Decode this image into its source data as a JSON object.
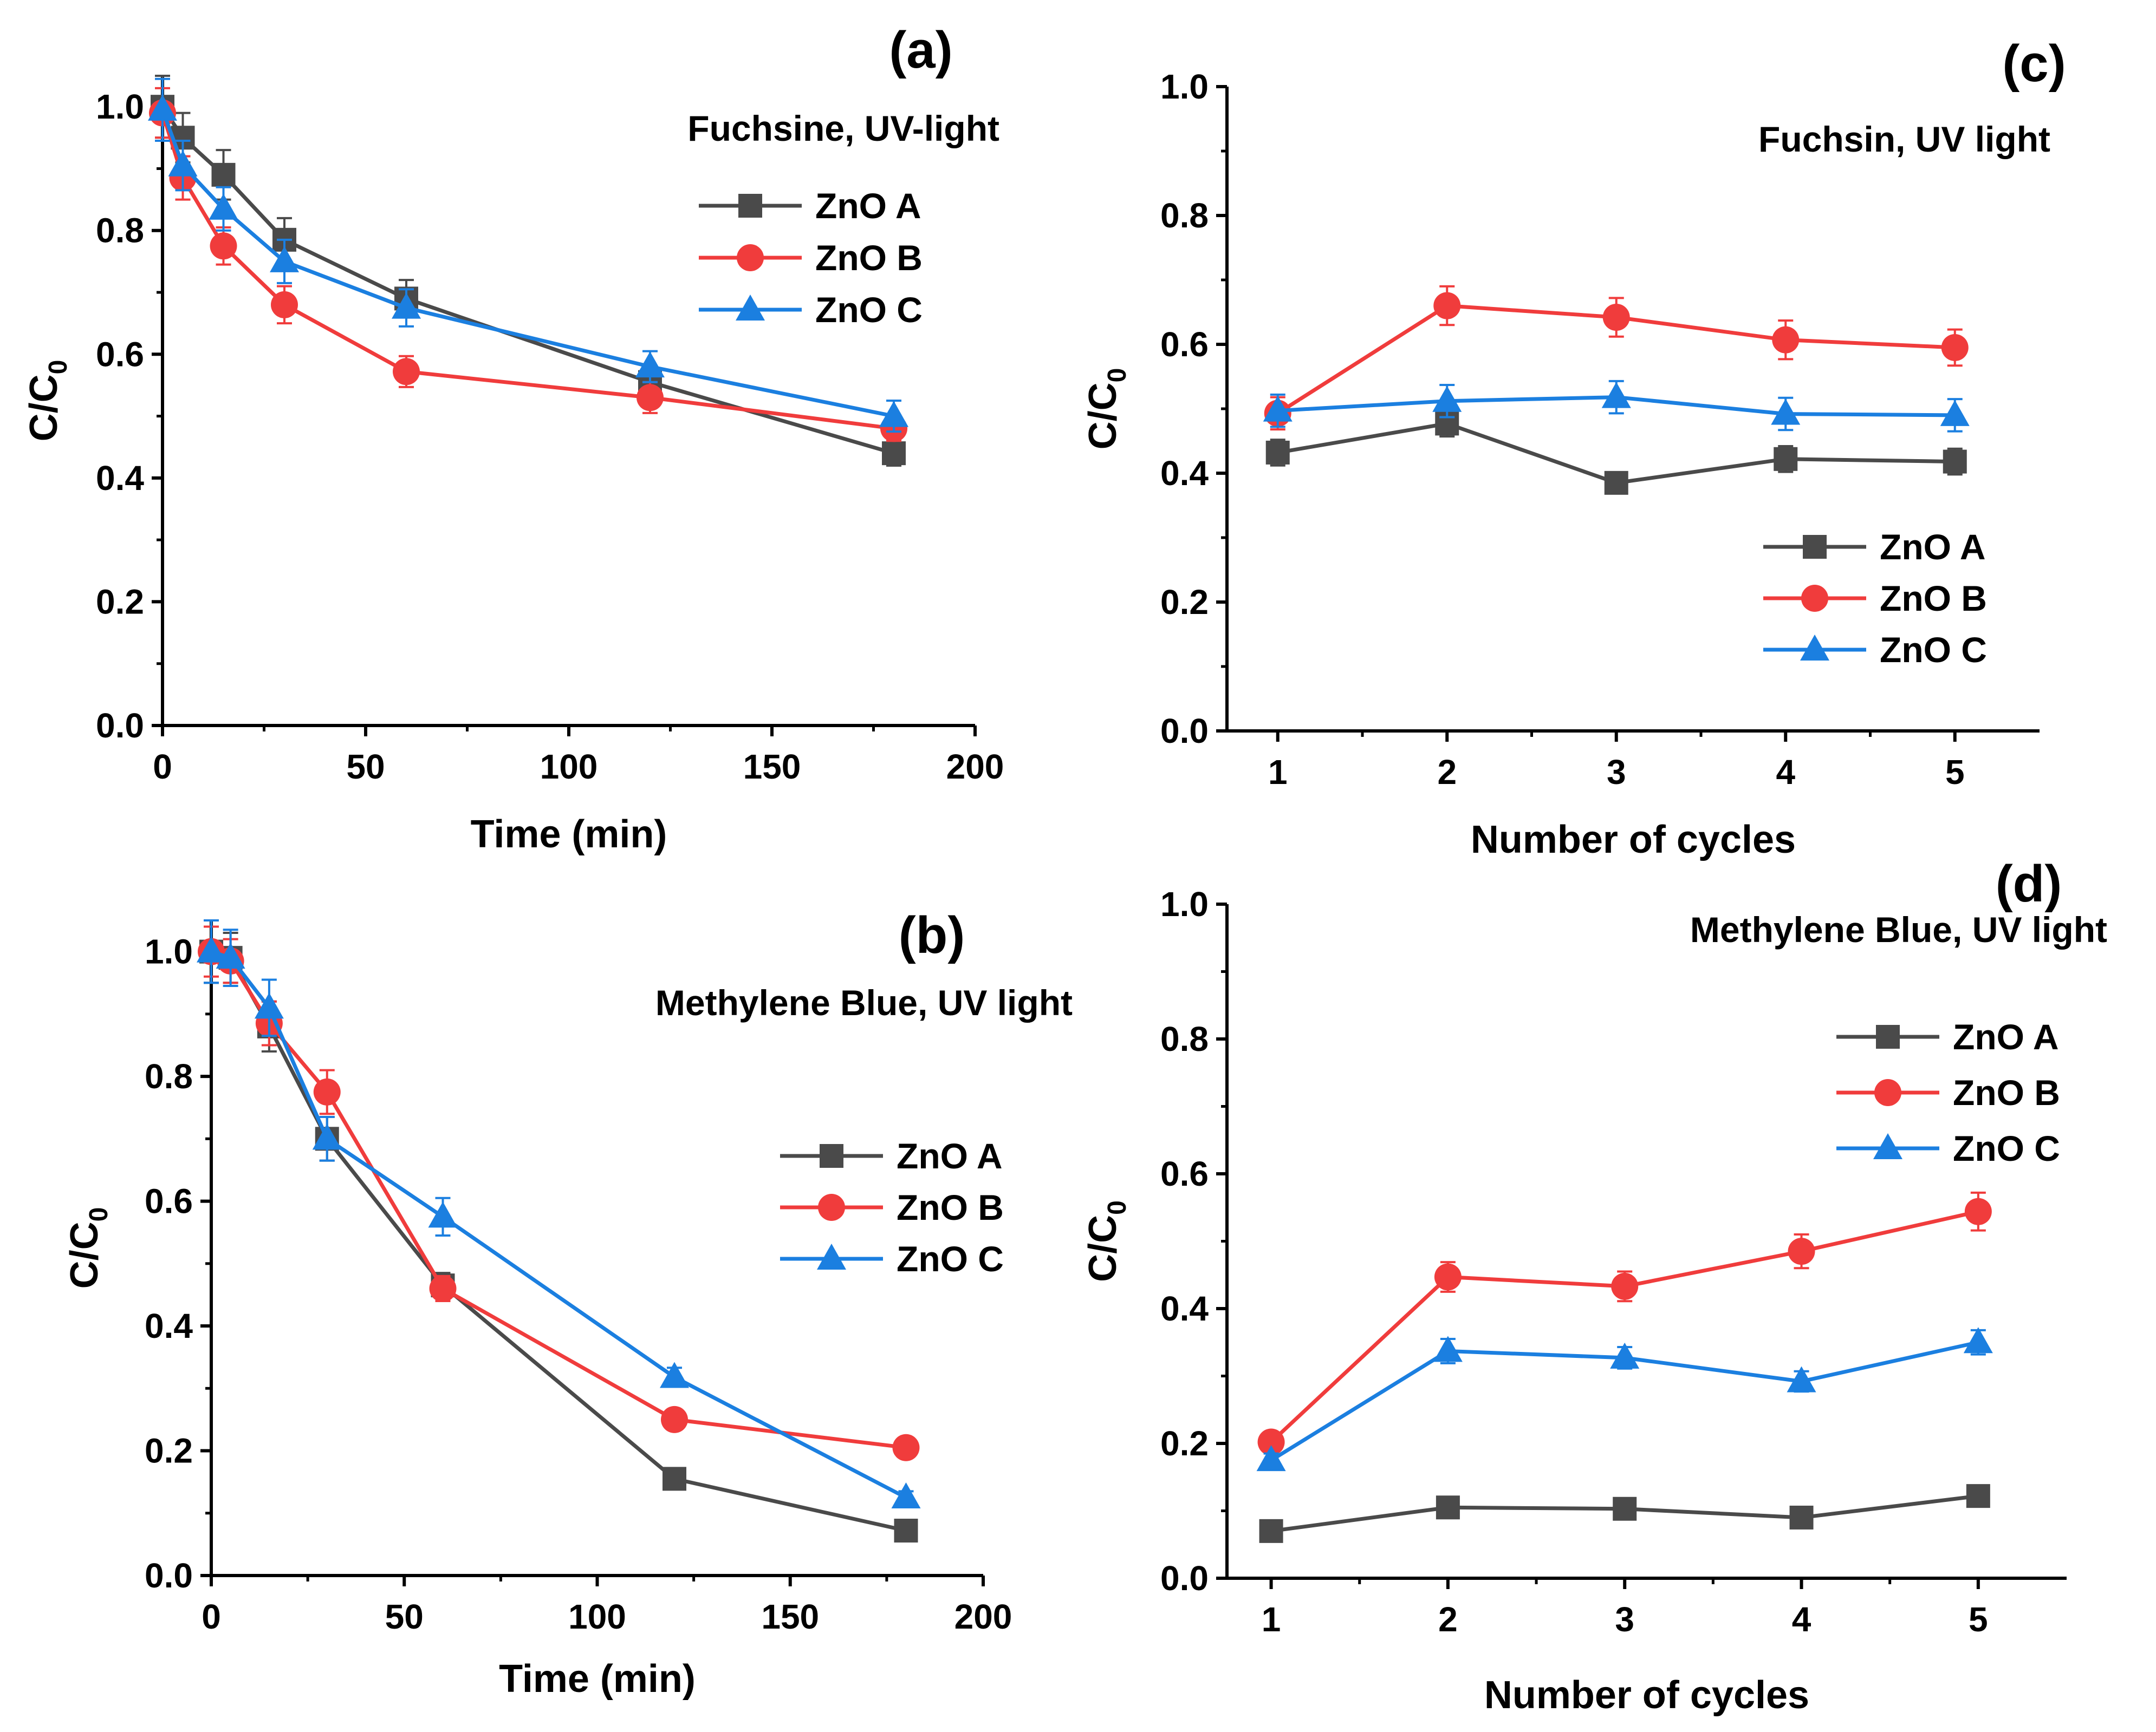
{
  "colors": {
    "zno_a": "#4a4a4a",
    "zno_b": "#f03c3c",
    "zno_c": "#1b7fe0",
    "axis": "#000000"
  },
  "chart_data": [
    {
      "panel": "(a)",
      "type": "line",
      "title": "Fuchsine, UV-light",
      "xlabel": "Time (min)",
      "ylabel": "C/C",
      "ylabel_sub": "0",
      "xlim": [
        0,
        200
      ],
      "ylim": [
        0,
        1.05
      ],
      "xticks": [
        0,
        50,
        100,
        150,
        200
      ],
      "yticks": [
        0.0,
        0.2,
        0.4,
        0.6,
        0.8,
        1.0
      ],
      "x": [
        0,
        5,
        15,
        30,
        60,
        120,
        180
      ],
      "legend_position": "top-right",
      "series": [
        {
          "name": "ZnO A",
          "marker": "square",
          "color": "#4a4a4a",
          "values": [
            1.0,
            0.95,
            0.89,
            0.785,
            0.69,
            0.555,
            0.44
          ],
          "errors": [
            0.05,
            0.04,
            0.04,
            0.035,
            0.03,
            0.025,
            0.02
          ]
        },
        {
          "name": "ZnO B",
          "marker": "circle",
          "color": "#f03c3c",
          "values": [
            0.99,
            0.885,
            0.775,
            0.68,
            0.572,
            0.53,
            0.48
          ],
          "errors": [
            0.04,
            0.035,
            0.03,
            0.03,
            0.025,
            0.025,
            0.02
          ]
        },
        {
          "name": "ZnO C",
          "marker": "triangle",
          "color": "#1b7fe0",
          "values": [
            0.995,
            0.905,
            0.835,
            0.75,
            0.675,
            0.58,
            0.5
          ],
          "errors": [
            0.05,
            0.04,
            0.035,
            0.035,
            0.03,
            0.025,
            0.025
          ]
        }
      ]
    },
    {
      "panel": "(b)",
      "type": "line",
      "title": "Methylene Blue, UV light",
      "xlabel": "Time (min)",
      "ylabel": "C/C",
      "ylabel_sub": "0",
      "xlim": [
        0,
        200
      ],
      "ylim": [
        0,
        1.05
      ],
      "xticks": [
        0,
        50,
        100,
        150,
        200
      ],
      "yticks": [
        0.0,
        0.2,
        0.4,
        0.6,
        0.8,
        1.0
      ],
      "x": [
        0,
        5,
        15,
        30,
        60,
        120,
        180
      ],
      "legend_position": "right",
      "series": [
        {
          "name": "ZnO A",
          "marker": "square",
          "color": "#4a4a4a",
          "values": [
            1.0,
            0.99,
            0.88,
            0.7,
            0.465,
            0.155,
            0.072
          ],
          "errors": [
            0.05,
            0.04,
            0.04,
            0.035,
            0.02,
            0.01,
            0.01
          ]
        },
        {
          "name": "ZnO B",
          "marker": "circle",
          "color": "#f03c3c",
          "values": [
            1.0,
            0.985,
            0.885,
            0.775,
            0.46,
            0.25,
            0.205
          ],
          "errors": [
            0.04,
            0.035,
            0.035,
            0.035,
            0.02,
            0.01,
            0.01
          ]
        },
        {
          "name": "ZnO C",
          "marker": "triangle",
          "color": "#1b7fe0",
          "values": [
            1.0,
            0.99,
            0.91,
            0.7,
            0.575,
            0.318,
            0.125
          ],
          "errors": [
            0.05,
            0.045,
            0.045,
            0.035,
            0.03,
            0.015,
            0.01
          ]
        }
      ]
    },
    {
      "panel": "(c)",
      "type": "line",
      "title": "Fuchsin, UV light",
      "xlabel": "Number of cycles",
      "ylabel": "C/C",
      "ylabel_sub": "0",
      "xlim": [
        0.7,
        5.5
      ],
      "ylim": [
        0,
        1.0
      ],
      "xticks": [
        1,
        2,
        3,
        4,
        5
      ],
      "yticks": [
        0.0,
        0.2,
        0.4,
        0.6,
        0.8,
        1.0
      ],
      "x": [
        1,
        2,
        3,
        4,
        5
      ],
      "legend_position": "lower-right",
      "series": [
        {
          "name": "ZnO A",
          "marker": "square",
          "color": "#4a4a4a",
          "values": [
            0.432,
            0.477,
            0.385,
            0.422,
            0.418
          ],
          "errors": [
            0.02,
            0.02,
            0.015,
            0.02,
            0.02
          ]
        },
        {
          "name": "ZnO B",
          "marker": "circle",
          "color": "#f03c3c",
          "values": [
            0.493,
            0.66,
            0.642,
            0.607,
            0.595
          ],
          "errors": [
            0.025,
            0.03,
            0.03,
            0.03,
            0.028
          ]
        },
        {
          "name": "ZnO C",
          "marker": "triangle",
          "color": "#1b7fe0",
          "values": [
            0.497,
            0.512,
            0.518,
            0.492,
            0.49
          ],
          "errors": [
            0.025,
            0.025,
            0.025,
            0.025,
            0.025
          ]
        }
      ]
    },
    {
      "panel": "(d)",
      "type": "line",
      "title": "Methylene Blue, UV light",
      "xlabel": "Number of cycles",
      "ylabel": "C/C",
      "ylabel_sub": "0",
      "xlim": [
        0.75,
        5.5
      ],
      "ylim": [
        0,
        1.0
      ],
      "xticks": [
        1,
        2,
        3,
        4,
        5
      ],
      "yticks": [
        0.0,
        0.2,
        0.4,
        0.6,
        0.8,
        1.0
      ],
      "x": [
        1,
        2,
        3,
        4,
        5
      ],
      "legend_position": "top-right",
      "series": [
        {
          "name": "ZnO A",
          "marker": "square",
          "color": "#4a4a4a",
          "values": [
            0.07,
            0.105,
            0.103,
            0.09,
            0.122
          ],
          "errors": [
            0.008,
            0.01,
            0.01,
            0.01,
            0.012
          ]
        },
        {
          "name": "ZnO B",
          "marker": "circle",
          "color": "#f03c3c",
          "values": [
            0.202,
            0.447,
            0.433,
            0.485,
            0.544
          ],
          "errors": [
            0.01,
            0.022,
            0.022,
            0.025,
            0.028
          ]
        },
        {
          "name": "ZnO C",
          "marker": "triangle",
          "color": "#1b7fe0",
          "values": [
            0.175,
            0.337,
            0.327,
            0.292,
            0.35
          ],
          "errors": [
            0.01,
            0.018,
            0.016,
            0.015,
            0.018
          ]
        }
      ]
    }
  ]
}
